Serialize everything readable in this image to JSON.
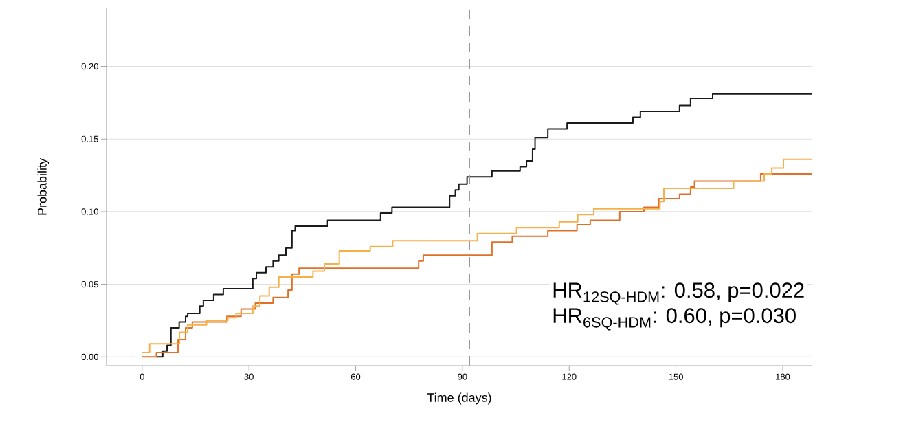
{
  "chart_data": {
    "type": "step",
    "xlabel": "Time (days)",
    "ylabel": "Probability",
    "xlim": [
      -10,
      188.3
    ],
    "ylim": [
      -0.006,
      0.24
    ],
    "xticks": [
      0,
      30,
      60,
      90,
      120,
      150,
      180
    ],
    "yticks": [
      {
        "value": 0,
        "label": "0.00"
      },
      {
        "value": 0.05,
        "label": "0.05"
      },
      {
        "value": 0.1,
        "label": "0.10"
      },
      {
        "value": 0.15,
        "label": "0.15"
      },
      {
        "value": 0.2,
        "label": "0.20"
      }
    ],
    "grid": "y",
    "marker": "none",
    "line_style": "solid",
    "ref_lines": [
      {
        "axis": "x",
        "value": 92,
        "color": "#999999",
        "line_style": "dashed"
      }
    ],
    "annotations": [
      "HR$_{12SQ-HDM}$: 0.58, p=0.022",
      "HR$_{6SQ-HDM}$: 0.60, p=0.030"
    ],
    "series": [
      {
        "color": "#1a1a1a",
        "x": [
          4,
          5.8,
          7,
          8.1,
          10.4,
          12.2,
          12.8,
          16.2,
          17.2,
          20.1,
          22.8,
          31.1,
          32.1,
          34.8,
          36.8,
          38.4,
          40.4,
          42.1,
          43,
          52.1,
          67,
          70.2,
          86.4,
          88,
          89,
          91.3,
          98.3,
          106.2,
          108,
          109.7,
          110.4,
          114,
          119.4,
          137.9,
          140,
          151,
          154.1,
          160.3,
          188.3
        ],
        "values": [
          0,
          0.004,
          0.008,
          0.02,
          0.024,
          0.028,
          0.03,
          0.035,
          0.039,
          0.043,
          0.047,
          0.054,
          0.058,
          0.062,
          0.066,
          0.07,
          0.075,
          0.087,
          0.09,
          0.094,
          0.099,
          0.103,
          0.111,
          0.115,
          0.119,
          0.124,
          0.128,
          0.131,
          0.135,
          0.143,
          0.151,
          0.157,
          0.161,
          0.165,
          0.169,
          0.173,
          0.178,
          0.181,
          0.181
        ]
      },
      {
        "color": "#e0702a",
        "x": [
          0,
          4,
          10.1,
          12.2,
          14.1,
          23.8,
          27.8,
          31.8,
          36.8,
          41,
          42.1,
          44.1,
          77.7,
          79,
          98.3,
          104,
          114,
          122.2,
          125.9,
          134.2,
          141,
          145.2,
          151,
          154.1,
          155.2,
          173.8,
          188.3
        ],
        "values": [
          0,
          0.003,
          0.012,
          0.02,
          0.024,
          0.028,
          0.033,
          0.037,
          0.041,
          0.046,
          0.057,
          0.061,
          0.066,
          0.07,
          0.079,
          0.083,
          0.087,
          0.091,
          0.094,
          0.1,
          0.103,
          0.109,
          0.112,
          0.117,
          0.121,
          0.126,
          0.126
        ]
      },
      {
        "color": "#f5b04a",
        "x": [
          0,
          2.1,
          10.5,
          12.8,
          18.1,
          24.1,
          26.4,
          31.1,
          33.1,
          35.7,
          38.4,
          48,
          51.2,
          55.4,
          64.1,
          70.4,
          94.2,
          105.2,
          117.2,
          122.4,
          126.9,
          145.5,
          146.6,
          166.2,
          174.8,
          176.9,
          180.2,
          188.3
        ],
        "values": [
          0.003,
          0.009,
          0.017,
          0.022,
          0.025,
          0.027,
          0.03,
          0.035,
          0.042,
          0.048,
          0.055,
          0.059,
          0.064,
          0.073,
          0.076,
          0.08,
          0.085,
          0.089,
          0.093,
          0.098,
          0.102,
          0.107,
          0.116,
          0.121,
          0.126,
          0.13,
          0.136,
          0.136
        ]
      }
    ]
  }
}
